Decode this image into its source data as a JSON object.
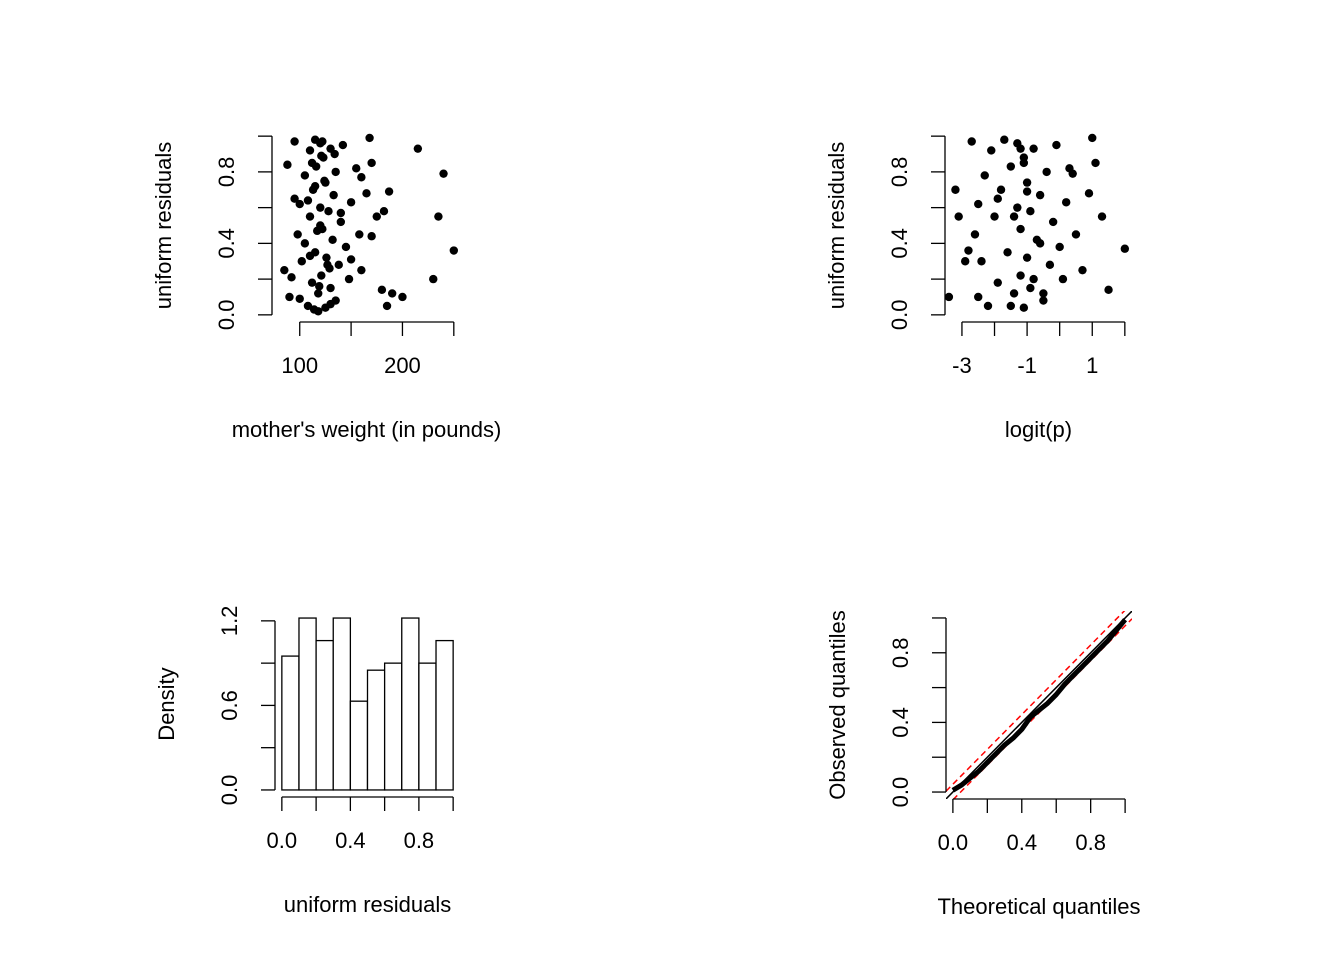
{
  "chart_data": [
    {
      "type": "scatter",
      "xlabel": "mother's weight (in pounds)",
      "ylabel": "uniform residuals",
      "x": [
        85,
        90,
        95,
        98,
        100,
        102,
        105,
        108,
        110,
        110,
        112,
        113,
        115,
        115,
        116,
        118,
        120,
        120,
        121,
        122,
        123,
        125,
        125,
        126,
        128,
        130,
        130,
        132,
        133,
        135,
        135,
        138,
        140,
        142,
        145,
        148,
        150,
        155,
        158,
        160,
        165,
        168,
        170,
        175,
        180,
        182,
        185,
        187,
        190,
        200,
        215,
        230,
        235,
        240,
        250,
        95,
        105,
        112,
        118,
        120,
        124,
        127,
        130,
        134,
        110,
        115,
        117,
        119,
        122,
        88,
        92,
        100,
        140,
        150,
        160,
        170,
        108,
        114,
        121,
        129
      ],
      "values": [
        0.25,
        0.1,
        0.97,
        0.45,
        0.62,
        0.3,
        0.78,
        0.05,
        0.92,
        0.55,
        0.18,
        0.7,
        0.98,
        0.35,
        0.83,
        0.12,
        0.6,
        0.96,
        0.22,
        0.48,
        0.88,
        0.04,
        0.74,
        0.32,
        0.58,
        0.15,
        0.93,
        0.42,
        0.67,
        0.08,
        0.8,
        0.28,
        0.52,
        0.95,
        0.38,
        0.2,
        0.63,
        0.82,
        0.45,
        0.25,
        0.68,
        0.99,
        0.85,
        0.55,
        0.14,
        0.58,
        0.05,
        0.69,
        0.12,
        0.1,
        0.93,
        0.2,
        0.55,
        0.79,
        0.36,
        0.65,
        0.4,
        0.85,
        0.02,
        0.5,
        0.75,
        0.28,
        0.06,
        0.9,
        0.33,
        0.72,
        0.47,
        0.16,
        0.97,
        0.84,
        0.21,
        0.09,
        0.57,
        0.31,
        0.77,
        0.44,
        0.64,
        0.03,
        0.89,
        0.26
      ],
      "xlim": [
        73,
        257
      ],
      "ylim": [
        -0.04,
        1.04
      ],
      "xticks": [
        100,
        200
      ],
      "minor_xticks": [
        150,
        250
      ],
      "yticks": [
        {
          "value": 0,
          "label": "0.0"
        },
        0.4,
        0.8
      ],
      "minor_yticks": [
        0.2,
        0.6,
        1.0
      ]
    },
    {
      "type": "scatter",
      "xlabel": "logit(p)",
      "ylabel": "uniform residuals",
      "x": [
        -3.4,
        -3.2,
        -3.1,
        -2.9,
        -2.7,
        -2.6,
        -2.5,
        -2.4,
        -2.3,
        -2.2,
        -2.1,
        -2.0,
        -1.9,
        -1.8,
        -1.7,
        -1.6,
        -1.5,
        -1.4,
        -1.3,
        -1.3,
        -1.2,
        -1.2,
        -1.1,
        -1.1,
        -1.0,
        -1.0,
        -0.9,
        -0.9,
        -0.8,
        -0.7,
        -0.6,
        -0.5,
        -0.4,
        -0.3,
        -0.2,
        -0.1,
        0.0,
        0.1,
        0.2,
        0.3,
        0.5,
        0.7,
        0.9,
        1.0,
        1.1,
        1.3,
        1.5,
        2.0,
        -1.5,
        -1.0,
        -0.5,
        -2.5,
        -1.2,
        -0.8,
        -1.4,
        0.4,
        -2.8,
        -1.9,
        -0.6,
        -1.1
      ],
      "values": [
        0.1,
        0.7,
        0.55,
        0.3,
        0.97,
        0.45,
        0.62,
        0.3,
        0.78,
        0.05,
        0.92,
        0.55,
        0.18,
        0.7,
        0.98,
        0.35,
        0.83,
        0.12,
        0.6,
        0.96,
        0.22,
        0.48,
        0.88,
        0.04,
        0.74,
        0.32,
        0.58,
        0.15,
        0.93,
        0.42,
        0.67,
        0.08,
        0.8,
        0.28,
        0.52,
        0.95,
        0.38,
        0.2,
        0.63,
        0.82,
        0.45,
        0.25,
        0.68,
        0.99,
        0.85,
        0.55,
        0.14,
        0.37,
        0.05,
        0.69,
        0.12,
        0.1,
        0.93,
        0.2,
        0.55,
        0.79,
        0.36,
        0.65,
        0.4,
        0.85
      ],
      "xlim": [
        -3.52,
        2.22
      ],
      "ylim": [
        -0.04,
        1.04
      ],
      "xticks": [
        -3,
        -1,
        1
      ],
      "minor_xticks": [
        -2,
        0,
        2
      ],
      "yticks": [
        {
          "value": 0,
          "label": "0.0"
        },
        0.4,
        0.8
      ],
      "minor_yticks": [
        0.2,
        0.6,
        1.0
      ]
    },
    {
      "type": "histogram",
      "xlabel": "uniform residuals",
      "ylabel": "Density",
      "bins": [
        0,
        0.1,
        0.2,
        0.3,
        0.4,
        0.5,
        0.6,
        0.7,
        0.8,
        0.9,
        1.0
      ],
      "values": [
        0.95,
        1.22,
        1.06,
        1.22,
        0.63,
        0.85,
        0.9,
        1.22,
        0.9,
        1.06
      ],
      "xlim": [
        -0.04,
        1.04
      ],
      "ylim": [
        -0.05,
        1.27
      ],
      "xticks": [
        {
          "value": 0,
          "label": "0.0"
        },
        0.4,
        0.8
      ],
      "minor_xticks": [
        0.2,
        0.6,
        1.0
      ],
      "yticks": [
        {
          "value": 0,
          "label": "0.0"
        },
        0.6,
        1.2
      ],
      "minor_yticks": [
        0.3,
        0.9
      ]
    },
    {
      "type": "qq",
      "xlabel": "Theoretical quantiles",
      "ylabel": "Observed quantiles",
      "x": [
        0,
        0.05,
        0.1,
        0.15,
        0.2,
        0.25,
        0.3,
        0.35,
        0.4,
        0.45,
        0.5,
        0.55,
        0.6,
        0.65,
        0.7,
        0.75,
        0.8,
        0.85,
        0.9,
        0.95,
        1
      ],
      "values": [
        0.01,
        0.04,
        0.08,
        0.12,
        0.17,
        0.22,
        0.27,
        0.31,
        0.36,
        0.43,
        0.47,
        0.51,
        0.56,
        0.62,
        0.67,
        0.72,
        0.77,
        0.82,
        0.87,
        0.93,
        0.99
      ],
      "band_halfwidth": 0.045,
      "band_color": "#ff0000",
      "xlim": [
        -0.04,
        1.04
      ],
      "ylim": [
        -0.04,
        1.04
      ],
      "xticks": [
        {
          "value": 0,
          "label": "0.0"
        },
        0.4,
        0.8
      ],
      "minor_xticks": [
        0.2,
        0.6,
        1.0
      ],
      "yticks": [
        {
          "value": 0,
          "label": "0.0"
        },
        0.4,
        0.8
      ],
      "minor_yticks": [
        0.2,
        0.6,
        1.0
      ]
    }
  ]
}
